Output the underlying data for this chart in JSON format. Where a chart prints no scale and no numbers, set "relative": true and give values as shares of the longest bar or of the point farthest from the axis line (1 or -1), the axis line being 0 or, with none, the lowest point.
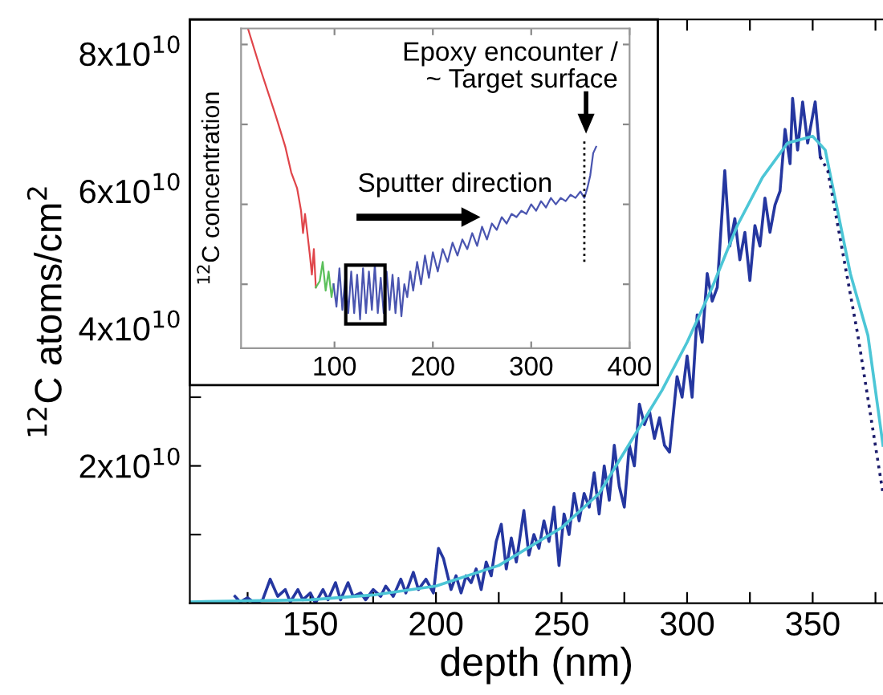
{
  "chart_data": [
    {
      "type": "line",
      "xlabel": "depth (nm)",
      "ylabel": "$^{12}$C atoms/cm$^{2}$",
      "xlim": [
        102,
        378
      ],
      "xticks": [
        {
          "value": 125,
          "label": null
        },
        150,
        {
          "value": 175,
          "label": null
        },
        200,
        {
          "value": 225,
          "label": null
        },
        250,
        {
          "value": 275,
          "label": null
        },
        300,
        {
          "value": 325,
          "label": null
        },
        350,
        {
          "value": 375,
          "label": null
        }
      ],
      "ylim": [
        0,
        85000000000.0
      ],
      "yticks": [
        {
          "value": 10000000000.0,
          "label": null
        },
        {
          "value": 20000000000.0,
          "label": "2x10$^{10}$"
        },
        {
          "value": 30000000000.0,
          "label": null
        },
        {
          "value": 40000000000.0,
          "label": "4x10$^{10}$"
        },
        {
          "value": 50000000000.0,
          "label": null
        },
        {
          "value": 60000000000.0,
          "label": "6x10$^{10}$"
        },
        {
          "value": 70000000000.0,
          "label": null
        },
        {
          "value": 80000000000.0,
          "label": "8x10$^{10}$"
        }
      ],
      "series": [
        {
          "color": "#2537a0",
          "line_style": "solid",
          "x": [
            120,
            122,
            125,
            128,
            131,
            134,
            137,
            140,
            142,
            145,
            147,
            150,
            152,
            155,
            157,
            160,
            162,
            165,
            167,
            170,
            172,
            175,
            178,
            180,
            183,
            186,
            188,
            191,
            193,
            196,
            199,
            201,
            203,
            206,
            208,
            210,
            212,
            214,
            216,
            218,
            220,
            222,
            224,
            226,
            228,
            230,
            232,
            235,
            237,
            239,
            241,
            243,
            245,
            247,
            249,
            251,
            253,
            255,
            257,
            259,
            261,
            263,
            265,
            267,
            269,
            271,
            273,
            275,
            277,
            279,
            281,
            283,
            285,
            287,
            289,
            291,
            293,
            296,
            298,
            300,
            302,
            304,
            306,
            308,
            310,
            312,
            315,
            317,
            319,
            321,
            323,
            325,
            327,
            329,
            331,
            333,
            335,
            337,
            339,
            341,
            342,
            344,
            346,
            348,
            351,
            353
          ],
          "values": [
            1000000000.0,
            200000000.0,
            800000000.0,
            0.0,
            500000000.0,
            3500000000.0,
            1000000000.0,
            2000000000.0,
            200000000.0,
            2000000000.0,
            500000000.0,
            1500000000.0,
            0.0,
            2000000000.0,
            500000000.0,
            3000000000.0,
            500000000.0,
            3000000000.0,
            1000000000.0,
            1500000000.0,
            500000000.0,
            2000000000.0,
            1000000000.0,
            2500000000.0,
            1000000000.0,
            3500000000.0,
            1500000000.0,
            4500000000.0,
            2000000000.0,
            3500000000.0,
            1500000000.0,
            8000000000.0,
            6500000000.0,
            2000000000.0,
            4000000000.0,
            1500000000.0,
            4000000000.0,
            3000000000.0,
            5000000000.0,
            2000000000.0,
            6000000000.0,
            4000000000.0,
            9000000000.0,
            11500000000.0,
            5000000000.0,
            9500000000.0,
            6000000000.0,
            13500000000.0,
            7000000000.0,
            10000000000.0,
            8000000000.0,
            12000000000.0,
            9000000000.0,
            14000000000.0,
            5500000000.0,
            13000000000.0,
            10000000000.0,
            16000000000.0,
            12000000000.0,
            16000000000.0,
            14000000000.0,
            19000000000.0,
            13000000000.0,
            20000000000.0,
            15000000000.0,
            23000000000.0,
            17000000000.0,
            14000000000.0,
            23000000000.0,
            20000000000.0,
            29000000000.0,
            26000000000.0,
            28000000000.0,
            24000000000.0,
            27000000000.0,
            23000000000.0,
            22000000000.0,
            33000000000.0,
            30000000000.0,
            36000000000.0,
            30000000000.0,
            42000000000.0,
            38000000000.0,
            48000000000.0,
            44000000000.0,
            46000000000.0,
            63000000000.0,
            52000000000.0,
            56000000000.0,
            50000000000.0,
            54000000000.0,
            47000000000.0,
            55000000000.0,
            52000000000.0,
            59000000000.0,
            54000000000.0,
            58000000000.0,
            60000000000.0,
            69000000000.0,
            64000000000.0,
            73500000000.0,
            66000000000.0,
            73000000000.0,
            67000000000.0,
            73000000000.0,
            65000000000.0
          ]
        },
        {
          "color": "#4cc6d6",
          "line_style": "solid",
          "x": [
            102,
            150,
            175,
            200,
            225,
            250,
            265,
            280,
            290,
            300,
            310,
            320,
            330,
            340,
            350,
            355,
            360,
            365,
            372,
            378
          ],
          "values": [
            200000000.0,
            500000000.0,
            1200000000.0,
            2500000000.0,
            5500000000.0,
            11000000000.0,
            16000000000.0,
            25000000000.0,
            31000000000.0,
            38000000000.0,
            46000000000.0,
            55000000000.0,
            62000000000.0,
            67000000000.0,
            68000000000.0,
            66000000000.0,
            57000000000.0,
            48000000000.0,
            39000000000.0,
            23000000000.0
          ]
        },
        {
          "color": "#1c1c6b",
          "line_style": "dotted",
          "x": [
            353,
            356,
            368,
            378
          ],
          "values": [
            65000000000.0,
            63000000000.0,
            39000000000.0,
            16000000000.0
          ]
        }
      ]
    },
    {
      "type": "line",
      "relative": true,
      "ylabel": "$^{12}$C concentration",
      "xlim": [
        5,
        400
      ],
      "xticks": [
        100,
        200,
        300,
        400
      ],
      "annotations": [
        "Sputter direction",
        "Epoxy encounter /\n~ Target surface"
      ],
      "ref_lines": [
        {
          "axis": "x",
          "value": 354,
          "line_style": "dotted",
          "color": "#000000"
        }
      ],
      "series": [
        {
          "color": "#e0454a",
          "x": [
            12,
            25,
            40,
            50,
            56,
            62,
            66,
            68,
            70,
            72,
            75,
            77,
            79,
            81
          ],
          "values": [
            1.0,
            0.87,
            0.73,
            0.63,
            0.55,
            0.5,
            0.43,
            0.36,
            0.42,
            0.37,
            0.29,
            0.23,
            0.31,
            0.19
          ]
        },
        {
          "color": "#5cc05c",
          "x": [
            81,
            85,
            88,
            91,
            94,
            97,
            99
          ],
          "values": [
            0.19,
            0.21,
            0.27,
            0.18,
            0.24,
            0.16,
            0.2
          ]
        },
        {
          "color": "#4a55b0",
          "x": [
            99,
            102,
            105,
            108,
            111,
            114,
            117,
            120,
            123,
            126,
            129,
            132,
            135,
            138,
            141,
            144,
            147,
            150,
            153,
            156,
            159,
            162,
            165,
            168,
            171,
            174,
            177,
            180,
            184,
            188,
            192,
            196,
            200,
            205,
            210,
            215,
            220,
            225,
            230,
            235,
            240,
            245,
            250,
            255,
            260,
            265,
            270,
            275,
            280,
            285,
            290,
            295,
            300,
            305,
            310,
            315,
            320,
            325,
            330,
            335,
            340,
            345,
            350,
            354,
            357,
            360,
            363,
            366
          ],
          "values": [
            0.2,
            0.13,
            0.25,
            0.12,
            0.22,
            0.11,
            0.24,
            0.11,
            0.23,
            0.09,
            0.25,
            0.11,
            0.24,
            0.12,
            0.26,
            0.11,
            0.22,
            0.11,
            0.24,
            0.12,
            0.23,
            0.11,
            0.22,
            0.1,
            0.2,
            0.16,
            0.24,
            0.18,
            0.27,
            0.2,
            0.29,
            0.22,
            0.3,
            0.24,
            0.31,
            0.27,
            0.33,
            0.29,
            0.34,
            0.31,
            0.36,
            0.32,
            0.38,
            0.34,
            0.39,
            0.37,
            0.41,
            0.39,
            0.42,
            0.41,
            0.43,
            0.42,
            0.45,
            0.43,
            0.46,
            0.44,
            0.47,
            0.45,
            0.47,
            0.46,
            0.48,
            0.47,
            0.49,
            0.47,
            0.5,
            0.54,
            0.61,
            0.63
          ]
        }
      ]
    }
  ]
}
